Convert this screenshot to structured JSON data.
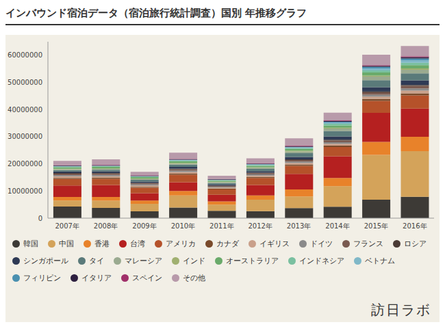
{
  "chart_data": {
    "type": "bar",
    "title": "インバウンド宿泊データ（宿泊旅行統計調査）国別 年推移グラフ",
    "annotations": [
      "訪日ラボ"
    ],
    "stacked": true,
    "grid": false,
    "legend": "bottom",
    "categories": [
      "2007年",
      "2008年",
      "2009年",
      "2010年",
      "2011年",
      "2012年",
      "2013年",
      "2014年",
      "2015年",
      "2016年"
    ],
    "ylim": [
      0,
      65000000
    ],
    "yticks": [
      0,
      10000000,
      20000000,
      30000000,
      40000000,
      50000000,
      60000000
    ],
    "series": [
      {
        "name": "韓国",
        "color": "#3d3a36",
        "values": [
          4300000,
          3800000,
          2500000,
          3900000,
          2700000,
          2600000,
          3700000,
          4200000,
          6800000,
          7900000
        ]
      },
      {
        "name": "中国",
        "color": "#d4a35a",
        "values": [
          2200000,
          2600000,
          2800000,
          4500000,
          2300000,
          4200000,
          4300000,
          7600000,
          16500000,
          16800000
        ]
      },
      {
        "name": "香港",
        "color": "#e8822a",
        "values": [
          1300000,
          1400000,
          1200000,
          1600000,
          1200000,
          1600000,
          2600000,
          3000000,
          4800000,
          5300000
        ]
      },
      {
        "name": "台湾",
        "color": "#b52020",
        "values": [
          4200000,
          4400000,
          2700000,
          3200000,
          2400000,
          3800000,
          5700000,
          8000000,
          10700000,
          10400000
        ]
      },
      {
        "name": "アメリカ",
        "color": "#b5522a",
        "values": [
          2400000,
          2300000,
          2000000,
          2800000,
          2000000,
          2600000,
          3000000,
          3400000,
          4400000,
          4800000
        ]
      },
      {
        "name": "カナダ",
        "color": "#7a4a2a",
        "values": [
          400000,
          400000,
          350000,
          400000,
          300000,
          400000,
          450000,
          500000,
          700000,
          800000
        ]
      },
      {
        "name": "イギリス",
        "color": "#c9a08a",
        "values": [
          600000,
          550000,
          500000,
          600000,
          400000,
          500000,
          600000,
          700000,
          900000,
          1000000
        ]
      },
      {
        "name": "ドイツ",
        "color": "#8a8a8a",
        "values": [
          500000,
          500000,
          400000,
          500000,
          300000,
          400000,
          500000,
          550000,
          700000,
          800000
        ]
      },
      {
        "name": "フランス",
        "color": "#7a5a50",
        "values": [
          500000,
          500000,
          400000,
          500000,
          300000,
          450000,
          550000,
          650000,
          850000,
          950000
        ]
      },
      {
        "name": "ロシア",
        "color": "#4a3a35",
        "values": [
          200000,
          200000,
          150000,
          200000,
          150000,
          200000,
          250000,
          300000,
          300000,
          300000
        ]
      },
      {
        "name": "シンガポール",
        "color": "#2e3a55",
        "values": [
          600000,
          600000,
          500000,
          700000,
          400000,
          600000,
          900000,
          1200000,
          1600000,
          1700000
        ]
      },
      {
        "name": "タイ",
        "color": "#5a7a7a",
        "values": [
          500000,
          600000,
          600000,
          800000,
          500000,
          800000,
          1400000,
          2000000,
          2600000,
          2600000
        ]
      },
      {
        "name": "マレーシア",
        "color": "#9aaa90",
        "values": [
          300000,
          300000,
          300000,
          400000,
          250000,
          400000,
          600000,
          900000,
          1300000,
          1300000
        ]
      },
      {
        "name": "インド",
        "color": "#a0b070",
        "values": [
          200000,
          200000,
          200000,
          250000,
          200000,
          250000,
          300000,
          350000,
          400000,
          500000
        ]
      },
      {
        "name": "オーストラリア",
        "color": "#6aaa6a",
        "values": [
          600000,
          600000,
          500000,
          600000,
          400000,
          500000,
          600000,
          800000,
          1100000,
          1200000
        ]
      },
      {
        "name": "インドネシア",
        "color": "#7ac0a0",
        "values": [
          200000,
          200000,
          200000,
          300000,
          200000,
          300000,
          400000,
          600000,
          800000,
          900000
        ]
      },
      {
        "name": "ベトナム",
        "color": "#80b8c8",
        "values": [
          100000,
          100000,
          100000,
          150000,
          100000,
          150000,
          200000,
          400000,
          700000,
          900000
        ]
      },
      {
        "name": "フィリピン",
        "color": "#4a90b0",
        "values": [
          100000,
          100000,
          100000,
          150000,
          100000,
          150000,
          200000,
          400000,
          600000,
          700000
        ]
      },
      {
        "name": "イタリア",
        "color": "#2e2040",
        "values": [
          200000,
          200000,
          200000,
          200000,
          150000,
          200000,
          250000,
          300000,
          350000,
          450000
        ]
      },
      {
        "name": "スペイン",
        "color": "#a0306a",
        "values": [
          100000,
          100000,
          100000,
          100000,
          100000,
          150000,
          200000,
          200000,
          300000,
          350000
        ]
      },
      {
        "name": "その他",
        "color": "#b89aaa",
        "values": [
          1600000,
          2000000,
          1300000,
          2300000,
          1200000,
          1800000,
          2700000,
          2800000,
          3800000,
          3800000
        ]
      }
    ]
  }
}
